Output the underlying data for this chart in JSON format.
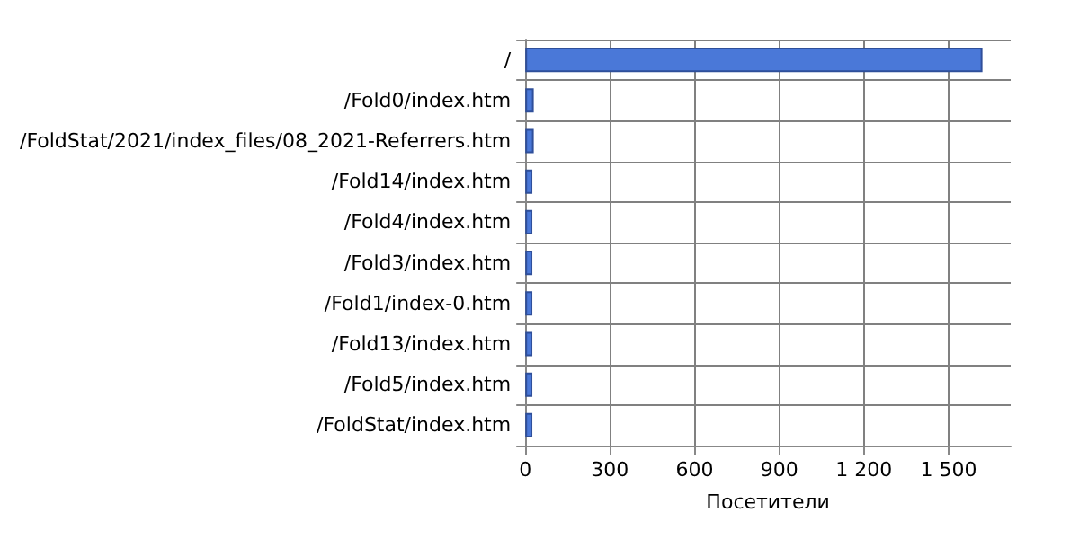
{
  "chart_data": {
    "type": "bar",
    "orientation": "horizontal",
    "xlabel": "Посетители",
    "categories": [
      "/",
      "/Fold0/index.htm",
      "/FoldStat/2021/index_files/08_2021-Referrers.htm",
      "/Fold14/index.htm",
      "/Fold4/index.htm",
      "/Fold3/index.htm",
      "/Fold1/index-0.htm",
      "/Fold13/index.htm",
      "/Fold5/index.htm",
      "/FoldStat/index.htm"
    ],
    "values": [
      1620,
      30,
      30,
      25,
      25,
      25,
      25,
      25,
      25,
      25
    ],
    "color": "#4a78d8",
    "xlim": [
      0,
      1720
    ],
    "xticks": [
      0,
      300,
      600,
      900,
      {
        "value": 1200,
        "label": "1 200"
      },
      {
        "value": 1500,
        "label": "1 500"
      }
    ],
    "grid": true
  }
}
